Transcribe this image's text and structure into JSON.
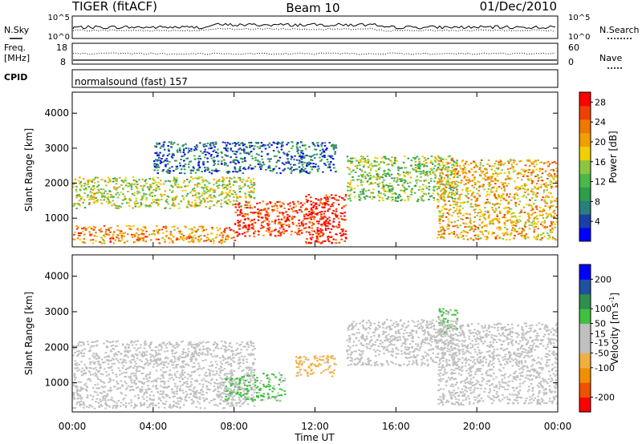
{
  "header": {
    "station": "TIGER (fitACF)",
    "beam": "Beam 10",
    "date": "01/Dec/2010"
  },
  "noise_panel": {
    "left_label": "N.Sky",
    "right_label": "N.Search",
    "left_ticks": [
      "10^5",
      "10^0"
    ],
    "right_ticks": [
      "10^5",
      "10^0"
    ]
  },
  "freq_panel": {
    "left_label_1": "Freq.",
    "left_label_2": "[MHz]",
    "right_label": "Nave",
    "left_ticks": [
      "18",
      "8"
    ],
    "right_ticks": [
      "60",
      "0"
    ]
  },
  "cpid_panel": {
    "label": "CPID",
    "text": "normalsound (fast) 157"
  },
  "chart_data": [
    {
      "type": "heatmap",
      "title": "",
      "xlabel": "Time UT",
      "ylabel": "Slant Range [km]",
      "xlim": [
        "00:00",
        "24:00"
      ],
      "ylim": [
        180,
        4600
      ],
      "x_ticks": [
        "00:00",
        "04:00",
        "08:00",
        "12:00",
        "16:00",
        "20:00",
        "00:00"
      ],
      "y_ticks": [
        1000,
        2000,
        3000,
        4000
      ],
      "colorbar": {
        "label": "Power [dB]",
        "ticks": [
          4,
          8,
          12,
          16,
          20,
          24,
          28
        ],
        "range": [
          0,
          30
        ],
        "colors": [
          "#0000ff",
          "#1a3fa8",
          "#2a7e7e",
          "#2f9e4a",
          "#4ab84a",
          "#8cc63f",
          "#f0d000",
          "#f0a000",
          "#f07800",
          "#f04000",
          "#ff0000"
        ]
      },
      "bands": [
        {
          "time": [
            "00:00",
            "08:00"
          ],
          "range_km": [
            300,
            800
          ],
          "power_db": 22
        },
        {
          "time": [
            "00:00",
            "09:00"
          ],
          "range_km": [
            1300,
            2200
          ],
          "power_db": 16
        },
        {
          "time": [
            "08:00",
            "12:30"
          ],
          "range_km": [
            500,
            1500
          ],
          "power_db": 27
        },
        {
          "time": [
            "11:30",
            "13:30"
          ],
          "range_km": [
            300,
            1700
          ],
          "power_db": 29
        },
        {
          "time": [
            "04:00",
            "13:00"
          ],
          "range_km": [
            2300,
            3200
          ],
          "power_db": 6
        },
        {
          "time": [
            "13:30",
            "19:00"
          ],
          "range_km": [
            1500,
            2800
          ],
          "power_db": 14
        },
        {
          "time": [
            "18:00",
            "24:00"
          ],
          "range_km": [
            400,
            2700
          ],
          "power_db": 20
        }
      ]
    },
    {
      "type": "heatmap",
      "title": "",
      "xlabel": "Time UT",
      "ylabel": "Slant Range [km]",
      "xlim": [
        "00:00",
        "24:00"
      ],
      "ylim": [
        180,
        4600
      ],
      "x_ticks": [
        "00:00",
        "04:00",
        "08:00",
        "12:00",
        "16:00",
        "20:00",
        "00:00"
      ],
      "y_ticks": [
        1000,
        2000,
        3000,
        4000
      ],
      "colorbar": {
        "label": "Velocity [m s^-1]",
        "ticks": [
          200,
          100,
          50,
          15,
          -15,
          -50,
          -100,
          -200
        ],
        "range": [
          -250,
          250
        ],
        "colors": [
          "#ff0000",
          "#f05000",
          "#f09000",
          "#f0b040",
          "#c0c0c0",
          "#c0c0c0",
          "#40c040",
          "#2f8f4f",
          "#2050a0",
          "#0000ff"
        ]
      },
      "bands": [
        {
          "time": [
            "00:00",
            "09:00"
          ],
          "range_km": [
            300,
            2200
          ],
          "velocity": 0
        },
        {
          "time": [
            "07:30",
            "10:30"
          ],
          "range_km": [
            500,
            1300
          ],
          "velocity": 60
        },
        {
          "time": [
            "11:00",
            "13:00"
          ],
          "range_km": [
            1200,
            1800
          ],
          "velocity": -70
        },
        {
          "time": [
            "13:30",
            "19:00"
          ],
          "range_km": [
            1500,
            2800
          ],
          "velocity": 0
        },
        {
          "time": [
            "18:00",
            "19:00"
          ],
          "range_km": [
            2400,
            3100
          ],
          "velocity": 60
        },
        {
          "time": [
            "18:00",
            "24:00"
          ],
          "range_km": [
            400,
            2700
          ],
          "velocity": -5
        }
      ]
    }
  ]
}
